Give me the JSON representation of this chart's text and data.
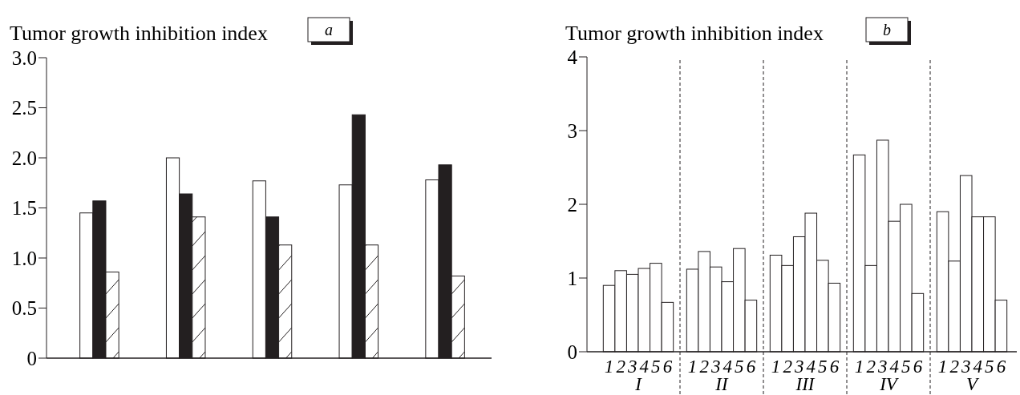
{
  "chart_data": [
    {
      "type": "bar",
      "title": "a",
      "ylabel": "Tumor growth inhibition index",
      "categories": [
        null,
        null,
        null,
        null,
        null
      ],
      "ylim": [
        0,
        3
      ],
      "yticks": [
        0,
        0.5,
        {
          "value": 1,
          "label": "1.0"
        },
        1.5,
        {
          "value": 2,
          "label": "2.0"
        },
        2.5,
        {
          "value": 3,
          "label": "3.0"
        }
      ],
      "series": [
        {
          "color": "#ffffff",
          "values": [
            1.45,
            2.0,
            1.77,
            1.73,
            1.78
          ]
        },
        {
          "color": "#231f20",
          "values": [
            1.57,
            1.64,
            1.41,
            2.43,
            1.93
          ]
        },
        {
          "color": "#ffffff",
          "values": [
            0.86,
            1.41,
            1.13,
            1.13,
            0.82
          ]
        }
      ]
    },
    {
      "type": "bar",
      "title": "b",
      "ylabel": "Tumor growth inhibition index",
      "categories": [
        "I",
        "II",
        "III",
        "IV",
        "V"
      ],
      "ylim": [
        0,
        4
      ],
      "yticks": [
        0,
        1,
        2,
        3,
        4
      ],
      "series": [
        {
          "name": "1",
          "color": "#ffffff",
          "values": [
            0.9,
            1.12,
            1.31,
            2.67,
            1.9
          ]
        },
        {
          "name": "2",
          "color": "#ffffff",
          "values": [
            1.1,
            1.36,
            1.17,
            1.17,
            1.23
          ]
        },
        {
          "name": "3",
          "color": "#ffffff",
          "values": [
            1.05,
            1.15,
            1.56,
            2.87,
            2.39
          ]
        },
        {
          "name": "4",
          "color": "#ffffff",
          "values": [
            1.13,
            0.95,
            1.88,
            1.77,
            1.83
          ]
        },
        {
          "name": "5",
          "color": "#ffffff",
          "values": [
            1.2,
            1.4,
            1.24,
            2.0,
            1.83
          ]
        },
        {
          "name": "6",
          "color": "#ffffff",
          "values": [
            0.67,
            0.7,
            0.93,
            0.79,
            0.7
          ]
        }
      ]
    }
  ]
}
